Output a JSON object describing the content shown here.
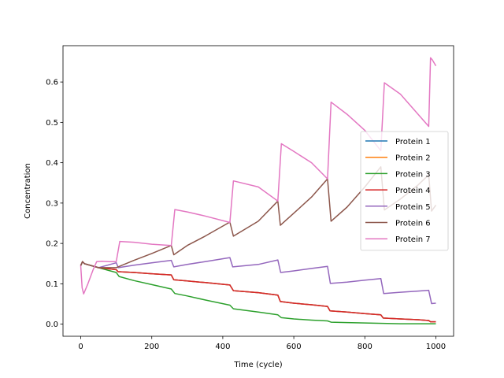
{
  "chart_data": {
    "type": "line",
    "xlabel": "Time (cycle)",
    "ylabel": "Concentration",
    "xlim": [
      -50,
      1050
    ],
    "ylim": [
      -0.03,
      0.69
    ],
    "xticks": [
      0,
      200,
      400,
      600,
      800,
      1000
    ],
    "yticks": [
      0.0,
      0.1,
      0.2,
      0.3,
      0.4,
      0.5,
      0.6
    ],
    "xtick_labels": [
      "0",
      "200",
      "400",
      "600",
      "800",
      "1000"
    ],
    "ytick_labels": [
      "0.0",
      "0.1",
      "0.2",
      "0.3",
      "0.4",
      "0.5",
      "0.6"
    ],
    "grid": false,
    "legend_position": "center-right",
    "series": [
      {
        "name": "Protein 1",
        "color": "#1f77b4",
        "x": [
          0,
          5,
          10,
          50,
          100,
          105,
          150,
          200,
          255,
          262,
          300,
          350,
          420,
          430,
          500,
          555,
          562,
          600,
          650,
          695,
          702,
          750,
          800,
          845,
          852,
          900,
          950,
          980,
          985,
          1000
        ],
        "y": [
          0.145,
          0.155,
          0.15,
          0.14,
          0.135,
          0.13,
          0.128,
          0.125,
          0.122,
          0.11,
          0.107,
          0.103,
          0.097,
          0.083,
          0.078,
          0.072,
          0.056,
          0.052,
          0.048,
          0.044,
          0.033,
          0.03,
          0.026,
          0.023,
          0.015,
          0.013,
          0.011,
          0.009,
          0.006,
          0.006
        ]
      },
      {
        "name": "Protein 2",
        "color": "#ff7f0e",
        "x": [
          0,
          5,
          10,
          50,
          100,
          105,
          150,
          200,
          255,
          262,
          300,
          350,
          420,
          430,
          500,
          555,
          562,
          600,
          650,
          695,
          702,
          750,
          800,
          845,
          852,
          900,
          950,
          980,
          985,
          1000
        ],
        "y": [
          0.145,
          0.155,
          0.15,
          0.14,
          0.135,
          0.13,
          0.128,
          0.125,
          0.122,
          0.11,
          0.107,
          0.103,
          0.097,
          0.083,
          0.078,
          0.072,
          0.056,
          0.052,
          0.048,
          0.044,
          0.033,
          0.03,
          0.026,
          0.023,
          0.015,
          0.013,
          0.011,
          0.009,
          0.006,
          0.006
        ]
      },
      {
        "name": "Protein 3",
        "color": "#2ca02c",
        "x": [
          0,
          5,
          10,
          50,
          100,
          108,
          150,
          200,
          255,
          265,
          300,
          350,
          420,
          430,
          500,
          555,
          565,
          600,
          650,
          695,
          705,
          750,
          800,
          850,
          900,
          950,
          1000
        ],
        "y": [
          0.145,
          0.155,
          0.15,
          0.14,
          0.128,
          0.118,
          0.108,
          0.098,
          0.087,
          0.076,
          0.07,
          0.06,
          0.047,
          0.038,
          0.03,
          0.023,
          0.016,
          0.013,
          0.01,
          0.008,
          0.005,
          0.004,
          0.003,
          0.002,
          0.001,
          0.001,
          0.001
        ]
      },
      {
        "name": "Protein 4",
        "color": "#d62728",
        "x": [
          0,
          5,
          10,
          50,
          100,
          105,
          150,
          200,
          255,
          262,
          300,
          350,
          420,
          430,
          500,
          555,
          562,
          600,
          650,
          695,
          702,
          750,
          800,
          845,
          852,
          900,
          950,
          980,
          985,
          1000
        ],
        "y": [
          0.145,
          0.155,
          0.15,
          0.14,
          0.135,
          0.13,
          0.128,
          0.125,
          0.122,
          0.11,
          0.107,
          0.103,
          0.097,
          0.083,
          0.078,
          0.072,
          0.056,
          0.052,
          0.048,
          0.044,
          0.033,
          0.03,
          0.026,
          0.023,
          0.015,
          0.013,
          0.011,
          0.009,
          0.006,
          0.006
        ]
      },
      {
        "name": "Protein 5",
        "color": "#9467bd",
        "x": [
          0,
          5,
          10,
          50,
          100,
          106,
          150,
          200,
          255,
          262,
          300,
          350,
          420,
          428,
          500,
          555,
          563,
          600,
          650,
          695,
          703,
          750,
          800,
          845,
          853,
          900,
          950,
          980,
          988,
          1000
        ],
        "y": [
          0.145,
          0.155,
          0.15,
          0.14,
          0.152,
          0.14,
          0.146,
          0.152,
          0.158,
          0.142,
          0.148,
          0.155,
          0.165,
          0.142,
          0.148,
          0.159,
          0.128,
          0.132,
          0.138,
          0.143,
          0.101,
          0.104,
          0.109,
          0.113,
          0.076,
          0.079,
          0.082,
          0.084,
          0.051,
          0.052
        ]
      },
      {
        "name": "Protein 6",
        "color": "#8c564b",
        "x": [
          0,
          5,
          10,
          50,
          100,
          105,
          150,
          200,
          255,
          262,
          300,
          350,
          420,
          430,
          500,
          555,
          562,
          600,
          650,
          695,
          705,
          750,
          800,
          845,
          855,
          900,
          950,
          980,
          988,
          1000
        ],
        "y": [
          0.145,
          0.155,
          0.15,
          0.14,
          0.14,
          0.142,
          0.158,
          0.175,
          0.195,
          0.172,
          0.195,
          0.218,
          0.253,
          0.218,
          0.255,
          0.305,
          0.245,
          0.275,
          0.315,
          0.36,
          0.255,
          0.29,
          0.34,
          0.39,
          0.283,
          0.31,
          0.345,
          0.37,
          0.28,
          0.295
        ]
      },
      {
        "name": "Protein 7",
        "color": "#e377c2",
        "x": [
          0,
          4,
          8,
          20,
          35,
          45,
          60,
          80,
          100,
          110,
          150,
          200,
          255,
          265,
          300,
          350,
          420,
          430,
          500,
          555,
          565,
          600,
          650,
          695,
          705,
          750,
          800,
          845,
          855,
          900,
          950,
          980,
          985,
          990,
          1000
        ],
        "y": [
          0.145,
          0.09,
          0.075,
          0.1,
          0.135,
          0.155,
          0.156,
          0.155,
          0.155,
          0.205,
          0.203,
          0.198,
          0.195,
          0.284,
          0.278,
          0.268,
          0.252,
          0.355,
          0.34,
          0.305,
          0.447,
          0.428,
          0.4,
          0.36,
          0.55,
          0.52,
          0.48,
          0.43,
          0.598,
          0.57,
          0.52,
          0.49,
          0.66,
          0.655,
          0.64
        ]
      }
    ]
  }
}
